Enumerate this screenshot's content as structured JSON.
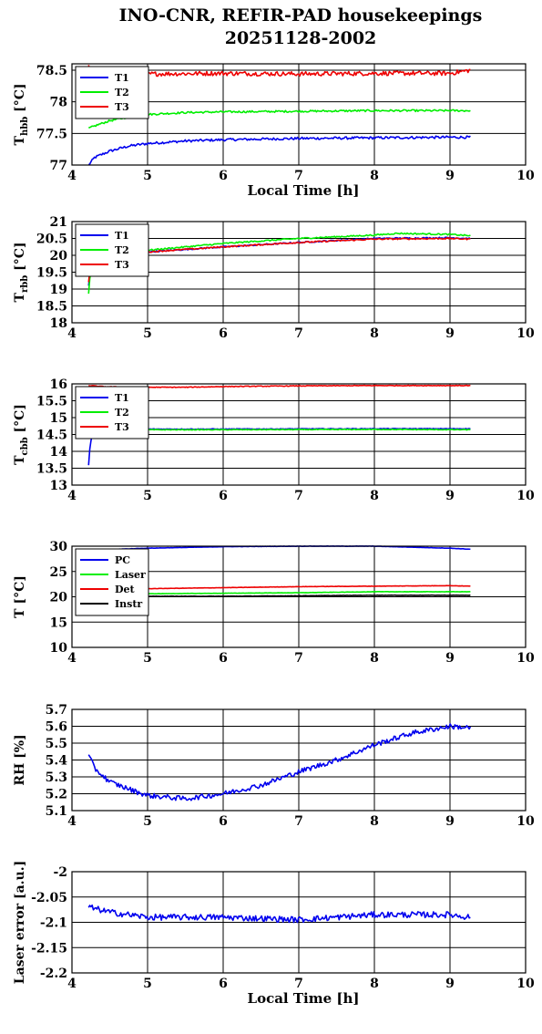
{
  "title_line1": "INO-CNR, REFIR-PAD housekeepings",
  "title_line2": "20251128-2002",
  "colors": {
    "blue": "#0000ee",
    "green": "#00ee00",
    "red": "#ee0000",
    "black": "#000000"
  },
  "chart_data": [
    {
      "type": "line",
      "id": "hbb",
      "ylabel": "T",
      "ylabel_sub": "hbb",
      "ylabel_unit": "[°C]",
      "xlabel": "Local Time [h]",
      "xlim": [
        4,
        10
      ],
      "ylim": [
        77,
        78.6
      ],
      "xticks": [
        4,
        5,
        6,
        7,
        8,
        9,
        10
      ],
      "yticks": [
        77,
        77.5,
        78,
        78.5
      ],
      "ytick_labels": [
        "77",
        "77.5",
        "78",
        "78.5"
      ],
      "grid": true,
      "legend": "top-left",
      "series": [
        {
          "name": "T1",
          "color": "blue",
          "points": [
            [
              4.22,
              77.0
            ],
            [
              4.3,
              77.12
            ],
            [
              4.5,
              77.22
            ],
            [
              4.75,
              77.3
            ],
            [
              5,
              77.34
            ],
            [
              5.5,
              77.38
            ],
            [
              6,
              77.4
            ],
            [
              7,
              77.42
            ],
            [
              8,
              77.43
            ],
            [
              9,
              77.44
            ],
            [
              9.27,
              77.44
            ]
          ],
          "noise": 0.02
        },
        {
          "name": "T2",
          "color": "green",
          "points": [
            [
              4.22,
              77.58
            ],
            [
              4.35,
              77.64
            ],
            [
              4.5,
              77.7
            ],
            [
              4.75,
              77.76
            ],
            [
              5,
              77.8
            ],
            [
              5.5,
              77.83
            ],
            [
              6,
              77.84
            ],
            [
              7,
              77.85
            ],
            [
              8,
              77.86
            ],
            [
              9,
              77.86
            ],
            [
              9.27,
              77.86
            ]
          ],
          "noise": 0.015
        },
        {
          "name": "T3",
          "color": "red",
          "points": [
            [
              4.22,
              78.55
            ],
            [
              4.3,
              78.5
            ],
            [
              4.6,
              78.46
            ],
            [
              5,
              78.44
            ],
            [
              6,
              78.45
            ],
            [
              7,
              78.44
            ],
            [
              8,
              78.45
            ],
            [
              9,
              78.45
            ],
            [
              9.27,
              78.5
            ]
          ],
          "noise": 0.035
        }
      ]
    },
    {
      "type": "line",
      "id": "rbb",
      "ylabel": "T",
      "ylabel_sub": "rbb",
      "ylabel_unit": "[°C]",
      "xlabel": "",
      "xlim": [
        4,
        10
      ],
      "ylim": [
        18,
        21
      ],
      "xticks": [
        4,
        5,
        6,
        7,
        8,
        9,
        10
      ],
      "yticks": [
        18,
        18.5,
        19,
        19.5,
        20,
        20.5,
        21
      ],
      "ytick_labels": [
        "18",
        "18.5",
        "19",
        "19.5",
        "20",
        "20.5",
        "21"
      ],
      "grid": true,
      "legend": "top-left",
      "series": [
        {
          "name": "T1",
          "color": "blue",
          "points": [
            [
              4.22,
              19.1
            ],
            [
              4.24,
              19.55
            ],
            [
              4.3,
              19.9
            ],
            [
              4.5,
              20.0
            ],
            [
              5,
              20.1
            ],
            [
              6,
              20.25
            ],
            [
              7,
              20.38
            ],
            [
              8,
              20.5
            ],
            [
              9,
              20.52
            ],
            [
              9.27,
              20.5
            ]
          ],
          "noise": 0.02
        },
        {
          "name": "T2",
          "color": "green",
          "points": [
            [
              4.22,
              18.85
            ],
            [
              4.24,
              19.4
            ],
            [
              4.3,
              19.95
            ],
            [
              4.5,
              20.05
            ],
            [
              5,
              20.15
            ],
            [
              6,
              20.35
            ],
            [
              7,
              20.5
            ],
            [
              8,
              20.6
            ],
            [
              8.3,
              20.65
            ],
            [
              9,
              20.62
            ],
            [
              9.27,
              20.58
            ]
          ],
          "noise": 0.02
        },
        {
          "name": "T3",
          "color": "red",
          "points": [
            [
              4.22,
              19.2
            ],
            [
              4.24,
              19.6
            ],
            [
              4.3,
              19.92
            ],
            [
              4.5,
              20.0
            ],
            [
              5,
              20.1
            ],
            [
              6,
              20.25
            ],
            [
              7,
              20.38
            ],
            [
              8,
              20.48
            ],
            [
              9,
              20.5
            ],
            [
              9.27,
              20.48
            ]
          ],
          "noise": 0.02
        }
      ]
    },
    {
      "type": "line",
      "id": "cbb",
      "ylabel": "T",
      "ylabel_sub": "cbb",
      "ylabel_unit": "[°C]",
      "xlabel": "",
      "xlim": [
        4,
        10
      ],
      "ylim": [
        13,
        16
      ],
      "xticks": [
        4,
        5,
        6,
        7,
        8,
        9,
        10
      ],
      "yticks": [
        13,
        13.5,
        14,
        14.5,
        15,
        15.5,
        16
      ],
      "ytick_labels": [
        "13",
        "13.5",
        "14",
        "14.5",
        "15",
        "15.5",
        "16"
      ],
      "grid": true,
      "legend": "top-left",
      "series": [
        {
          "name": "T1",
          "color": "blue",
          "points": [
            [
              4.22,
              13.6
            ],
            [
              4.24,
              14.2
            ],
            [
              4.28,
              14.62
            ],
            [
              4.5,
              14.66
            ],
            [
              6,
              14.66
            ],
            [
              8,
              14.67
            ],
            [
              9.27,
              14.67
            ]
          ],
          "noise": 0.01
        },
        {
          "name": "T2",
          "color": "green",
          "points": [
            [
              4.22,
              14.4
            ],
            [
              4.26,
              14.6
            ],
            [
              4.5,
              14.64
            ],
            [
              6,
              14.64
            ],
            [
              8,
              14.65
            ],
            [
              9.27,
              14.64
            ]
          ],
          "noise": 0.01
        },
        {
          "name": "T3",
          "color": "red",
          "points": [
            [
              4.22,
              15.95
            ],
            [
              4.4,
              15.92
            ],
            [
              4.8,
              15.9
            ],
            [
              5.5,
              15.9
            ],
            [
              6,
              15.92
            ],
            [
              7,
              15.94
            ],
            [
              8,
              15.95
            ],
            [
              9.27,
              15.95
            ]
          ],
          "noise": 0.01
        }
      ]
    },
    {
      "type": "line",
      "id": "temps",
      "ylabel": "T [°C]",
      "ylabel_sub": "",
      "ylabel_unit": "",
      "xlabel": "",
      "xlim": [
        4,
        10
      ],
      "ylim": [
        10,
        30
      ],
      "xticks": [
        4,
        5,
        6,
        7,
        8,
        9,
        10
      ],
      "yticks": [
        10,
        15,
        20,
        25,
        30
      ],
      "ytick_labels": [
        "10",
        "15",
        "20",
        "25",
        "30"
      ],
      "grid": true,
      "legend": "top-left",
      "series": [
        {
          "name": "PC",
          "color": "blue",
          "points": [
            [
              4.22,
              28.8
            ],
            [
              4.6,
              29.4
            ],
            [
              5,
              29.6
            ],
            [
              6,
              29.9
            ],
            [
              7,
              30.0
            ],
            [
              8,
              30.0
            ],
            [
              9,
              29.6
            ],
            [
              9.27,
              29.4
            ]
          ],
          "noise": 0.03
        },
        {
          "name": "Laser",
          "color": "green",
          "points": [
            [
              4.22,
              20.4
            ],
            [
              5,
              20.6
            ],
            [
              6,
              20.7
            ],
            [
              7,
              20.8
            ],
            [
              8,
              21.0
            ],
            [
              9,
              21.0
            ],
            [
              9.27,
              21.0
            ]
          ],
          "noise": 0.03
        },
        {
          "name": "Det",
          "color": "red",
          "points": [
            [
              4.22,
              21.4
            ],
            [
              5,
              21.6
            ],
            [
              6,
              21.8
            ],
            [
              7,
              22.0
            ],
            [
              8,
              22.1
            ],
            [
              9,
              22.2
            ],
            [
              9.27,
              22.1
            ]
          ],
          "noise": 0.03
        },
        {
          "name": "Instr",
          "color": "black",
          "points": [
            [
              4.22,
              20.0
            ],
            [
              5,
              20.1
            ],
            [
              6,
              20.1
            ],
            [
              7,
              20.2
            ],
            [
              8,
              20.3
            ],
            [
              9,
              20.3
            ],
            [
              9.27,
              20.3
            ]
          ],
          "noise": 0.03
        }
      ]
    },
    {
      "type": "line",
      "id": "rh",
      "ylabel": "RH [%]",
      "ylabel_sub": "",
      "ylabel_unit": "",
      "xlabel": "",
      "xlim": [
        4,
        10
      ],
      "ylim": [
        5.1,
        5.7
      ],
      "xticks": [
        4,
        5,
        6,
        7,
        8,
        9,
        10
      ],
      "yticks": [
        5.1,
        5.2,
        5.3,
        5.4,
        5.5,
        5.6,
        5.7
      ],
      "ytick_labels": [
        "5.1",
        "5.2",
        "5.3",
        "5.4",
        "5.5",
        "5.6",
        "5.7"
      ],
      "grid": true,
      "legend": "none",
      "series": [
        {
          "name": "",
          "color": "blue",
          "points": [
            [
              4.22,
              5.43
            ],
            [
              4.3,
              5.35
            ],
            [
              4.5,
              5.27
            ],
            [
              4.8,
              5.22
            ],
            [
              5,
              5.19
            ],
            [
              5.5,
              5.17
            ],
            [
              6,
              5.2
            ],
            [
              6.5,
              5.25
            ],
            [
              7,
              5.33
            ],
            [
              7.5,
              5.4
            ],
            [
              8,
              5.49
            ],
            [
              8.5,
              5.56
            ],
            [
              9,
              5.6
            ],
            [
              9.27,
              5.59
            ]
          ],
          "noise": 0.015
        }
      ]
    },
    {
      "type": "line",
      "id": "laser",
      "ylabel": "Laser error [a.u.]",
      "ylabel_sub": "",
      "ylabel_unit": "",
      "xlabel": "Local Time [h]",
      "xlim": [
        4,
        10
      ],
      "ylim": [
        -2.2,
        -2
      ],
      "xticks": [
        4,
        5,
        6,
        7,
        8,
        9,
        10
      ],
      "yticks": [
        -2.2,
        -2.15,
        -2.1,
        -2.05,
        -2
      ],
      "ytick_labels": [
        "-2.2",
        "-2.15",
        "-2.1",
        "-2.05",
        "-2"
      ],
      "grid": true,
      "legend": "none",
      "series": [
        {
          "name": "",
          "color": "blue",
          "points": [
            [
              4.22,
              -2.07
            ],
            [
              4.5,
              -2.08
            ],
            [
              5,
              -2.09
            ],
            [
              6,
              -2.09
            ],
            [
              7,
              -2.095
            ],
            [
              8,
              -2.085
            ],
            [
              9,
              -2.085
            ],
            [
              9.27,
              -2.09
            ]
          ],
          "noise": 0.006
        }
      ]
    }
  ]
}
